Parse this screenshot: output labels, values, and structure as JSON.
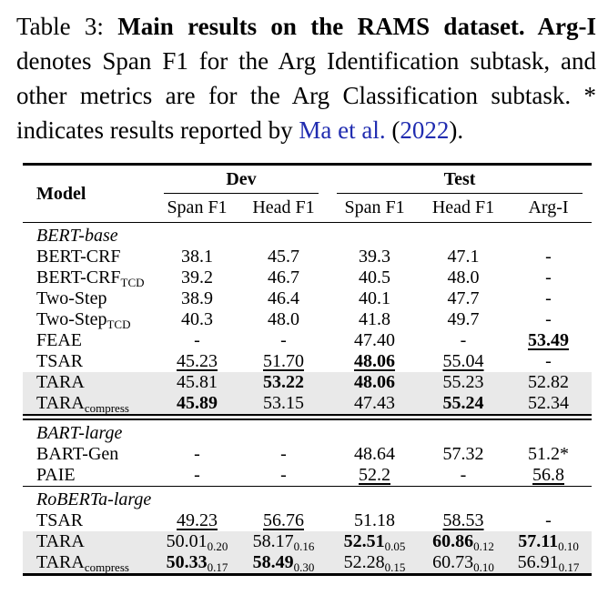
{
  "caption": {
    "prefix": "Table 3: ",
    "bold": "Main results on the RAMS dataset. Arg-I",
    "body": " denotes Span F1 for the Arg Identification subtask, and other metrics are for the Arg Classification subtask. * indicates results reported by ",
    "cite_authors": "Ma et al.",
    "cite_open": " (",
    "cite_year": "2022",
    "cite_close": ")."
  },
  "colors": {
    "link_blue": "#202cb0",
    "row_highlight": "#e9e9e9"
  },
  "table": {
    "header": {
      "model": "Model",
      "dev": "Dev",
      "test": "Test",
      "subcols": [
        "Span F1",
        "Head F1",
        "Span F1",
        "Head F1",
        "Arg-I"
      ]
    },
    "sections": [
      {
        "group": "BERT-base",
        "rule": "double",
        "rows": [
          {
            "model": "BERT-CRF",
            "cells": [
              {
                "v": "38.1"
              },
              {
                "v": "45.7"
              },
              {
                "v": "39.3"
              },
              {
                "v": "47.1"
              },
              {
                "v": "-"
              }
            ]
          },
          {
            "model": "BERT-CRF",
            "model_sub": "TCD",
            "cells": [
              {
                "v": "39.2"
              },
              {
                "v": "46.7"
              },
              {
                "v": "40.5"
              },
              {
                "v": "48.0"
              },
              {
                "v": "-"
              }
            ]
          },
          {
            "model": "Two-Step",
            "cells": [
              {
                "v": "38.9"
              },
              {
                "v": "46.4"
              },
              {
                "v": "40.1"
              },
              {
                "v": "47.7"
              },
              {
                "v": "-"
              }
            ]
          },
          {
            "model": "Two-Step",
            "model_sub": "TCD",
            "cells": [
              {
                "v": "40.3"
              },
              {
                "v": "48.0"
              },
              {
                "v": "41.8"
              },
              {
                "v": "49.7"
              },
              {
                "v": "-"
              }
            ]
          },
          {
            "model": "FEAE",
            "cells": [
              {
                "v": "-"
              },
              {
                "v": "-"
              },
              {
                "v": "47.40"
              },
              {
                "v": "-"
              },
              {
                "v": "53.49",
                "b": true,
                "u": true
              }
            ]
          },
          {
            "model": "TSAR",
            "cells": [
              {
                "v": "45.23",
                "u": true
              },
              {
                "v": "51.70",
                "u": true
              },
              {
                "v": "48.06",
                "b": true,
                "u": true
              },
              {
                "v": "55.04",
                "u": true
              },
              {
                "v": "-"
              }
            ]
          },
          {
            "model": "TARA",
            "highlight": true,
            "cells": [
              {
                "v": "45.81"
              },
              {
                "v": "53.22",
                "b": true
              },
              {
                "v": "48.06",
                "b": true
              },
              {
                "v": "55.23"
              },
              {
                "v": "52.82"
              }
            ]
          },
          {
            "model": "TARA",
            "model_sub": "compress",
            "highlight": true,
            "cells": [
              {
                "v": "45.89",
                "b": true
              },
              {
                "v": "53.15"
              },
              {
                "v": "47.43"
              },
              {
                "v": "55.24",
                "b": true
              },
              {
                "v": "52.34"
              }
            ]
          }
        ]
      },
      {
        "group": "BART-large",
        "rule": "single",
        "rows": [
          {
            "model": "BART-Gen",
            "cells": [
              {
                "v": "-"
              },
              {
                "v": "-"
              },
              {
                "v": "48.64"
              },
              {
                "v": "57.32"
              },
              {
                "v": "51.2*"
              }
            ]
          },
          {
            "model": "PAIE",
            "cells": [
              {
                "v": "-"
              },
              {
                "v": "-"
              },
              {
                "v": "52.2",
                "u": true
              },
              {
                "v": "-"
              },
              {
                "v": "56.8",
                "u": true
              }
            ]
          }
        ]
      },
      {
        "group": "RoBERTa-large",
        "rule": "thick",
        "rows": [
          {
            "model": "TSAR",
            "cells": [
              {
                "v": "49.23",
                "u": true
              },
              {
                "v": "56.76",
                "u": true
              },
              {
                "v": "51.18"
              },
              {
                "v": "58.53",
                "u": true
              },
              {
                "v": "-"
              }
            ]
          },
          {
            "model": "TARA",
            "highlight": true,
            "cells": [
              {
                "v": "50.01",
                "s": "0.20"
              },
              {
                "v": "58.17",
                "s": "0.16"
              },
              {
                "v": "52.51",
                "b": true,
                "s": "0.05"
              },
              {
                "v": "60.86",
                "b": true,
                "s": "0.12"
              },
              {
                "v": "57.11",
                "b": true,
                "s": "0.10"
              }
            ]
          },
          {
            "model": "TARA",
            "model_sub": "compress",
            "highlight": true,
            "cells": [
              {
                "v": "50.33",
                "b": true,
                "s": "0.17"
              },
              {
                "v": "58.49",
                "b": true,
                "s": "0.30"
              },
              {
                "v": "52.28",
                "s": "0.15"
              },
              {
                "v": "60.73",
                "s": "0.10"
              },
              {
                "v": "56.91",
                "s": "0.17"
              }
            ]
          }
        ]
      }
    ]
  }
}
